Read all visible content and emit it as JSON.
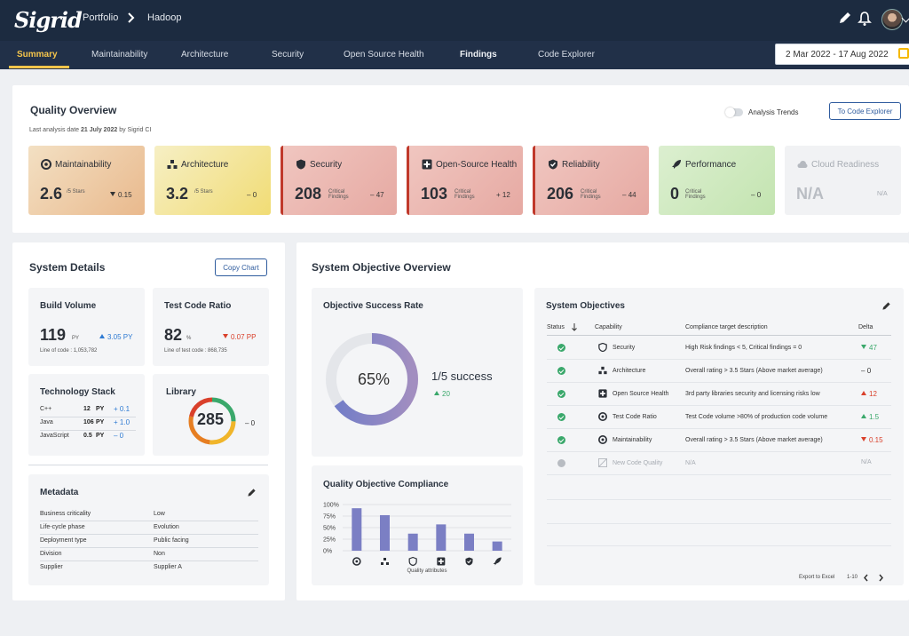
{
  "app": {
    "logo": "Sigrid"
  },
  "breadcrumb": {
    "portfolio": "Portfolio",
    "system": "Hadoop"
  },
  "nav": {
    "tabs": [
      "Summary",
      "Maintainability",
      "Architecture",
      "Security",
      "Open Source Health",
      "Findings",
      "Code Explorer"
    ],
    "active": "Summary"
  },
  "date_range": "2 Mar 2022 - 17 Aug 2022",
  "quality_overview": {
    "title": "Quality Overview",
    "last_analysis": "Last analysis date",
    "last_analysis_date": "21 July 2022",
    "last_analysis_by": "by Sigrid CI",
    "trends_label": "Analysis Trends",
    "to_code_explorer": "To Code Explorer",
    "tiles": [
      {
        "title": "Maintainability",
        "value": "2.6",
        "unit": "/5 Stars",
        "delta": "0.15",
        "delta_dir": "down",
        "icon": "maintainability-icon"
      },
      {
        "title": "Architecture",
        "value": "3.2",
        "unit": "/5 Stars",
        "delta": "0",
        "delta_dir": "none",
        "icon": "architecture-icon"
      },
      {
        "title": "Security",
        "value": "208",
        "unit": "Critical Findings",
        "delta": "47",
        "delta_dir": "none",
        "icon": "security-icon"
      },
      {
        "title": "Open-Source Health",
        "value": "103",
        "unit": "Critical Findings",
        "delta": "12",
        "delta_dir": "up",
        "icon": "open-source-icon"
      },
      {
        "title": "Reliability",
        "value": "206",
        "unit": "Critical Findings",
        "delta": "44",
        "delta_dir": "none",
        "icon": "reliability-icon"
      },
      {
        "title": "Performance",
        "value": "0",
        "unit": "Critical Findings",
        "delta": "0",
        "delta_dir": "none",
        "icon": "performance-icon"
      },
      {
        "title": "Cloud Readiness",
        "value": "N/A",
        "unit": "",
        "delta": "N/A",
        "delta_dir": "none",
        "icon": "cloud-icon"
      }
    ],
    "delta_signs": {
      "minus": "–",
      "plus": "+"
    }
  },
  "system_details": {
    "title": "System Details",
    "copy_chart": "Copy Chart",
    "build_volume": {
      "title": "Build Volume",
      "value": "119",
      "unit": "PY",
      "trend": "3.05 PY",
      "footnote": "Line of code : 1,053,782"
    },
    "test_code_ratio": {
      "title": "Test Code Ratio",
      "value": "82",
      "unit": "%",
      "trend": "0.07 PP",
      "footnote": "Line of test code : 868,735"
    },
    "technology_stack": {
      "title": "Technology Stack",
      "rows": [
        {
          "lang": "C++",
          "value": "12",
          "unit": "PY",
          "change": "+ 0.1"
        },
        {
          "lang": "Java",
          "value": "106",
          "unit": "PY",
          "change": "+ 1.0"
        },
        {
          "lang": "JavaScript",
          "value": "0.5",
          "unit": "PY",
          "change": "– 0"
        }
      ]
    },
    "library": {
      "title": "Library",
      "value": "285",
      "delta": "– 0"
    },
    "metadata": {
      "title": "Metadata",
      "rows": [
        {
          "key": "Business criticality",
          "value": "Low"
        },
        {
          "key": "Life-cycle phase",
          "value": "Evolution"
        },
        {
          "key": "Deployment type",
          "value": "Public facing"
        },
        {
          "key": "Division",
          "value": "Non"
        },
        {
          "key": "Supplier",
          "value": "Supplier A"
        }
      ]
    }
  },
  "system_objective_overview": {
    "title": "System Objective Overview",
    "success_rate": {
      "title": "Objective Success Rate",
      "percent": 65,
      "percent_label": "65%",
      "success": "1/5 success",
      "change": "20"
    },
    "compliance": {
      "title": "Quality Objective Compliance",
      "x_label": "Quality attributes"
    },
    "objectives": {
      "title": "System Objectives",
      "headers": {
        "status": "Status",
        "capability": "Capability",
        "description": "Compliance target description",
        "delta": "Delta"
      },
      "rows": [
        {
          "capability": "Security",
          "description": "High Risk findings < 5, Critical findings = 0",
          "delta": "47",
          "dir": "down-green",
          "status": "ok"
        },
        {
          "capability": "Architecture",
          "description": "Overall rating > 3.5 Stars (Above market average)",
          "delta": "0",
          "dir": "flat",
          "status": "ok"
        },
        {
          "capability": "Open Source Health",
          "description": "3rd party libraries security and licensing risks low",
          "delta": "12",
          "dir": "up-red",
          "status": "ok"
        },
        {
          "capability": "Test Code Ratio",
          "description": "Test Code volume >80% of production code volume",
          "delta": "1.5",
          "dir": "up-green",
          "status": "ok"
        },
        {
          "capability": "Maintainability",
          "description": "Overall rating > 3.5 Stars (Above market average)",
          "delta": "0.15",
          "dir": "down-red",
          "status": "ok"
        },
        {
          "capability": "New Code Quality",
          "description": "N/A",
          "delta": "N/A",
          "dir": "none",
          "status": "na"
        }
      ],
      "export": "Export to Excel",
      "pagination": "1-10"
    }
  },
  "colors": {
    "accent": "#f5c54b",
    "nav": "#213048",
    "topbar": "#1c2b40",
    "green": "#3aa86b",
    "red": "#d9402b",
    "blue": "#2f5c9e",
    "bar": "#7b7fc4"
  },
  "chart_data": {
    "type": "bar",
    "title": "Quality Objective Compliance",
    "xlabel": "Quality attributes",
    "ylabel": "",
    "categories": [
      "maintainability-icon",
      "architecture-icon",
      "security-icon",
      "open-source-icon",
      "reliability-icon",
      "performance-icon"
    ],
    "values": [
      92,
      77,
      37,
      57,
      37,
      20
    ],
    "ylim": [
      0,
      100
    ],
    "yticks": [
      "100%",
      "75%",
      "50%",
      "25%",
      "0%"
    ],
    "grid": true
  }
}
